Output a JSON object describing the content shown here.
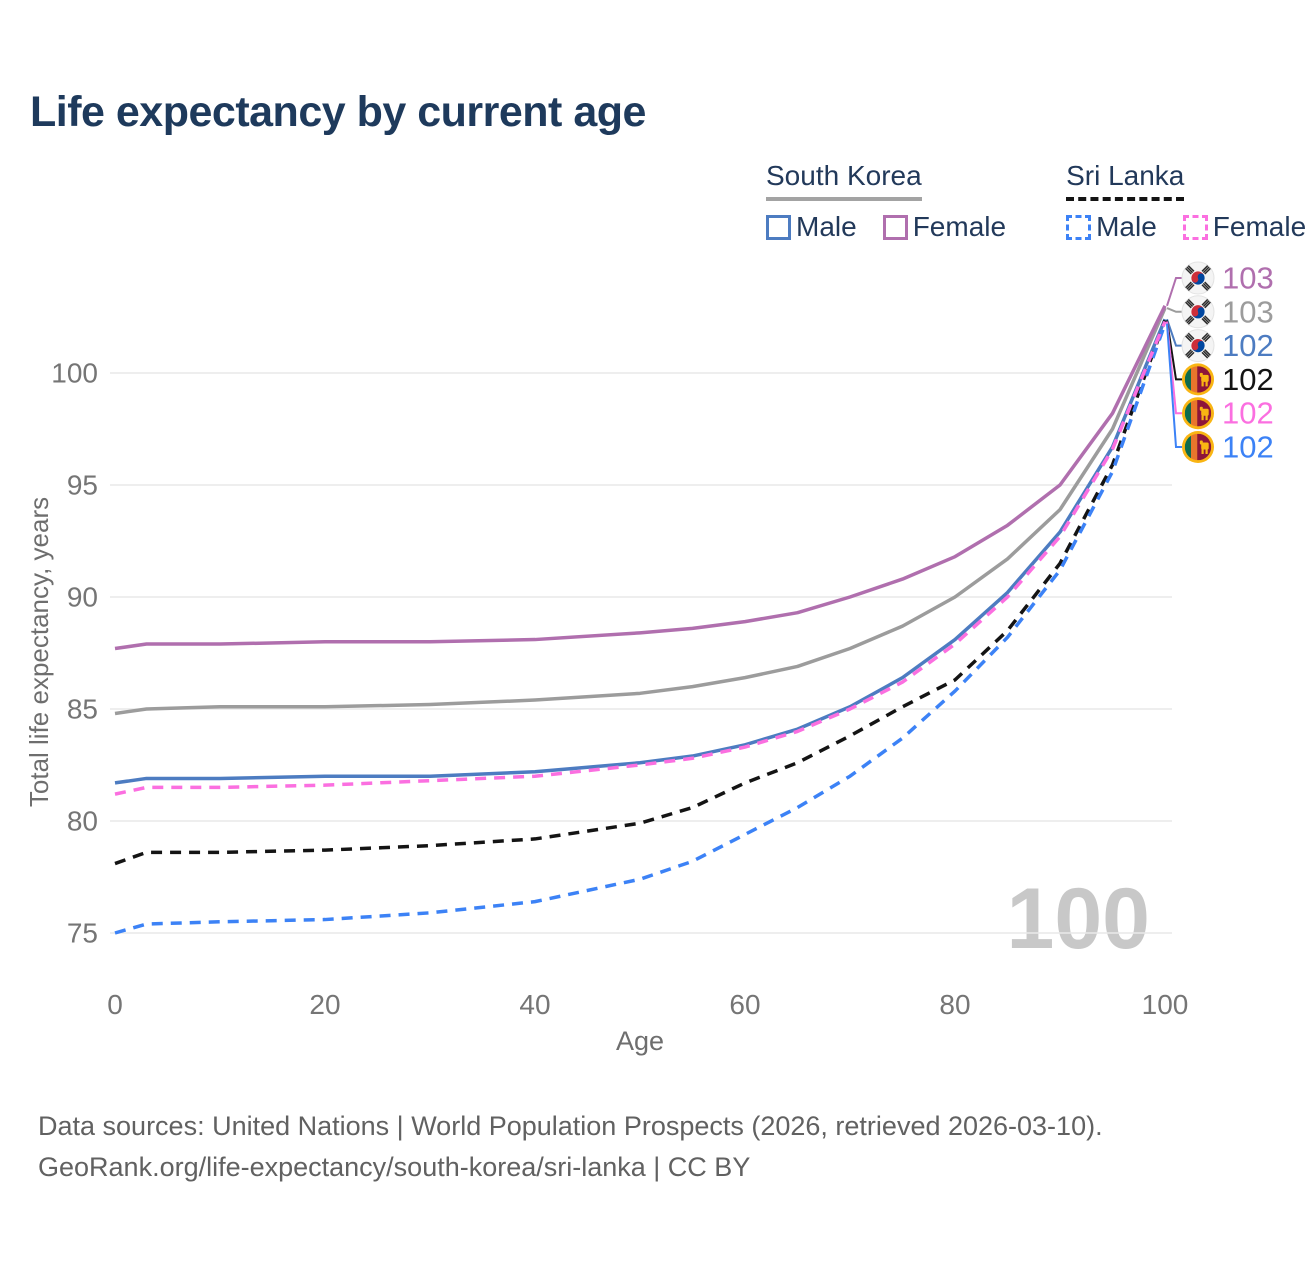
{
  "title": "Life expectancy by current age",
  "watermark_age": "100",
  "colors": {
    "title": "#1e3a5c",
    "axis_text": "#757575",
    "axis_title": "#6e6e6e",
    "grid": "#e9e9e9",
    "watermark": "#c8c8c8",
    "sk_female": "#b06fae",
    "sk_total": "#9c9c9c",
    "sk_male": "#4d7cc1",
    "sl_total": "#141414",
    "sl_female": "#fb6fe0",
    "sl_male": "#3c82f6"
  },
  "legend": {
    "groups": [
      {
        "country": "South Korea",
        "line_style": "solid",
        "line_color": "#a3a3a3",
        "items": [
          {
            "label": "Male",
            "color": "#4d7cc1",
            "box_style": "solid"
          },
          {
            "label": "Female",
            "color": "#b06fae",
            "box_style": "solid"
          }
        ]
      },
      {
        "country": "Sri Lanka",
        "line_style": "dashed",
        "line_color": "#141414",
        "items": [
          {
            "label": "Male",
            "color": "#3c82f6",
            "box_style": "dashed"
          },
          {
            "label": "Female",
            "color": "#fb6fe0",
            "box_style": "dashed"
          }
        ]
      }
    ]
  },
  "chart_data": {
    "type": "line",
    "title": "Life expectancy by current age",
    "xlabel": "Age",
    "ylabel": "Total life expectancy, years",
    "x_ticks": [
      0,
      20,
      40,
      60,
      80,
      100
    ],
    "y_ticks": [
      75,
      80,
      85,
      90,
      95,
      100
    ],
    "xlim": [
      0,
      100
    ],
    "ylim": [
      73,
      105
    ],
    "grid": "horizontal-only",
    "legend_position": "top-right",
    "x": [
      0,
      3,
      10,
      20,
      30,
      40,
      50,
      55,
      60,
      65,
      70,
      75,
      80,
      85,
      90,
      95,
      100
    ],
    "series": [
      {
        "name": "South Korea Female",
        "country": "South Korea",
        "sex": "Female",
        "flag": "kr",
        "color": "#b06fae",
        "dash": "solid",
        "values": [
          87.7,
          87.9,
          87.9,
          88.0,
          88.0,
          88.1,
          88.4,
          88.6,
          88.9,
          89.3,
          90.0,
          90.8,
          91.8,
          93.2,
          95.0,
          98.2,
          103.0
        ],
        "end_label": "103"
      },
      {
        "name": "South Korea Total",
        "country": "South Korea",
        "sex": "Both",
        "flag": "kr",
        "color": "#9c9c9c",
        "dash": "solid",
        "values": [
          84.8,
          85.0,
          85.1,
          85.1,
          85.2,
          85.4,
          85.7,
          86.0,
          86.4,
          86.9,
          87.7,
          88.7,
          90.0,
          91.7,
          93.9,
          97.5,
          102.9
        ],
        "end_label": "103"
      },
      {
        "name": "South Korea Male",
        "country": "South Korea",
        "sex": "Male",
        "flag": "kr",
        "color": "#4d7cc1",
        "dash": "solid",
        "values": [
          81.7,
          81.9,
          81.9,
          82.0,
          82.0,
          82.2,
          82.6,
          82.9,
          83.4,
          84.1,
          85.1,
          86.4,
          88.1,
          90.2,
          92.9,
          96.7,
          102.4
        ],
        "end_label": "102"
      },
      {
        "name": "Sri Lanka Total",
        "country": "Sri Lanka",
        "sex": "Both",
        "flag": "lk",
        "color": "#141414",
        "dash": "dashed",
        "values": [
          78.1,
          78.6,
          78.6,
          78.7,
          78.9,
          79.2,
          79.9,
          80.6,
          81.7,
          82.6,
          83.8,
          85.1,
          86.3,
          88.5,
          91.5,
          95.9,
          102.35
        ],
        "end_label": "102"
      },
      {
        "name": "Sri Lanka Female",
        "country": "Sri Lanka",
        "sex": "Female",
        "flag": "lk",
        "color": "#fb6fe0",
        "dash": "dashed",
        "values": [
          81.2,
          81.5,
          81.5,
          81.6,
          81.8,
          82.0,
          82.5,
          82.8,
          83.3,
          84.0,
          85.0,
          86.2,
          87.9,
          90.0,
          92.7,
          96.6,
          102.3
        ],
        "end_label": "102"
      },
      {
        "name": "Sri Lanka Male",
        "country": "Sri Lanka",
        "sex": "Male",
        "flag": "lk",
        "color": "#3c82f6",
        "dash": "dashed",
        "values": [
          75.0,
          75.4,
          75.5,
          75.6,
          75.9,
          76.4,
          77.4,
          78.2,
          79.4,
          80.6,
          82.0,
          83.7,
          85.8,
          88.2,
          91.2,
          95.6,
          102.2
        ],
        "end_label": "102"
      }
    ]
  },
  "footer": {
    "line1": "Data sources: United Nations | World Population Prospects (2026, retrieved 2026-03-10).",
    "line2": "GeoRank.org/life-expectancy/south-korea/sri-lanka | CC BY"
  }
}
